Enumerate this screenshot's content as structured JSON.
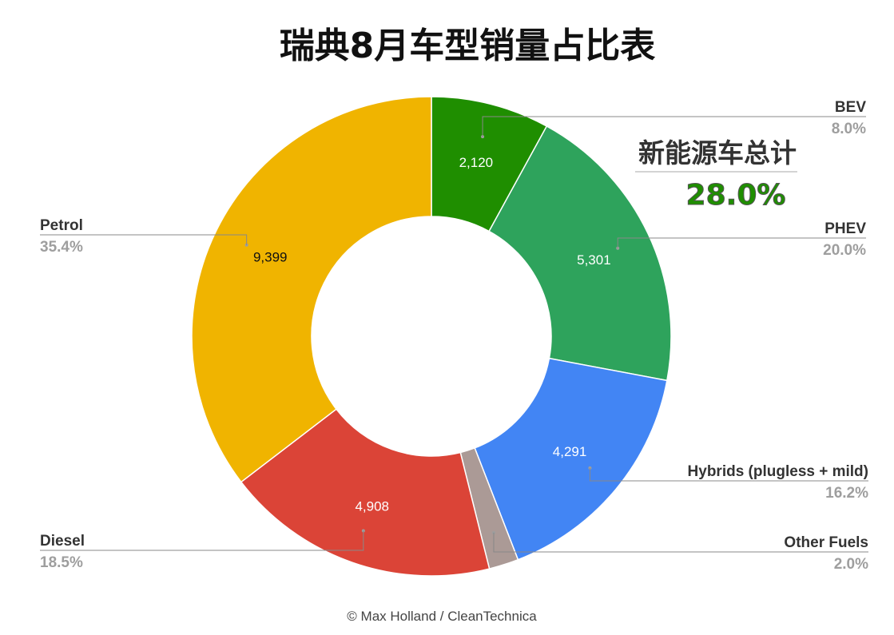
{
  "chart_data": {
    "type": "pie",
    "donut": true,
    "title": "瑞典8月车型销量占比表",
    "categories": [
      "BEV",
      "PHEV",
      "Hybrids (plugless + mild)",
      "Other Fuels",
      "Diesel",
      "Petrol"
    ],
    "values": [
      2120,
      5301,
      4291,
      530,
      4908,
      9399
    ],
    "value_labels": [
      "2,120",
      "5,301",
      "4,291",
      "",
      "4,908",
      "9,399"
    ],
    "percent_labels": [
      "8.0%",
      "20.0%",
      "16.2%",
      "2.0%",
      "18.5%",
      "35.4%"
    ],
    "colors": [
      "#1f8e00",
      "#2ea35c",
      "#4285f4",
      "#ab9a96",
      "#db4437",
      "#f0b400"
    ],
    "value_label_colors": [
      "#ffffff",
      "#ffffff",
      "#ffffff",
      "#ffffff",
      "#ffffff",
      "#111111"
    ],
    "legend": "none",
    "annotation": {
      "label": "新能源车总计",
      "value": "28.0%",
      "value_color": "#1f8e00"
    },
    "credit": "© Max Holland / CleanTechnica"
  }
}
